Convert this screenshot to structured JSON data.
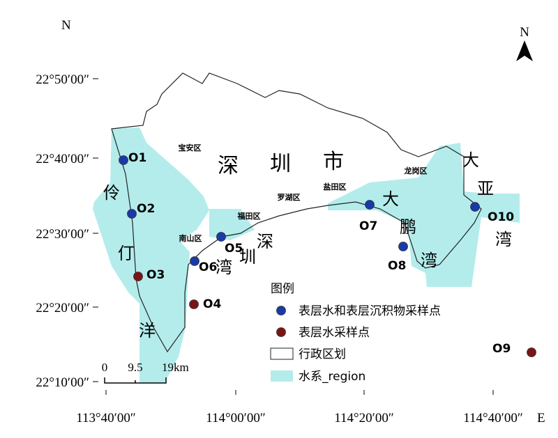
{
  "map": {
    "north_label": "N",
    "east_label": "E",
    "compass_label": "N",
    "lat_labels": [
      "22°50′00″",
      "22°40′00″",
      "22°30′00″",
      "22°20′00″",
      "22°10′00″"
    ],
    "lon_labels": [
      "113°40′00″",
      "114°00′00″",
      "114°20′00″",
      "114°40′00″"
    ],
    "districts": [
      "宝安区",
      "南山区",
      "福田区",
      "罗湖区",
      "盐田区",
      "龙岗区"
    ],
    "city_label": [
      "深",
      "圳",
      "市"
    ],
    "water_labels": [
      [
        "伶",
        "仃",
        "洋"
      ],
      [
        "深",
        "圳",
        "湾"
      ],
      [
        "大",
        "鹏",
        "湾"
      ],
      [
        "大",
        "亚",
        "湾"
      ]
    ],
    "scale_labels": [
      "0",
      "9.5",
      "19km"
    ],
    "legend": {
      "title": "图例",
      "items": [
        {
          "label": "表层水和表层沉积物采样点",
          "color": "#1a3aa8",
          "points": [
            "O1",
            "O2",
            "O5",
            "O6",
            "O7",
            "O8",
            "O10"
          ]
        },
        {
          "label": "表层水采样点",
          "color": "#7a1515",
          "points": [
            "O3",
            "O4",
            "O9"
          ]
        },
        {
          "label": "行政区划"
        },
        {
          "label": "水系_region",
          "color": "#b4ecec"
        }
      ]
    }
  }
}
